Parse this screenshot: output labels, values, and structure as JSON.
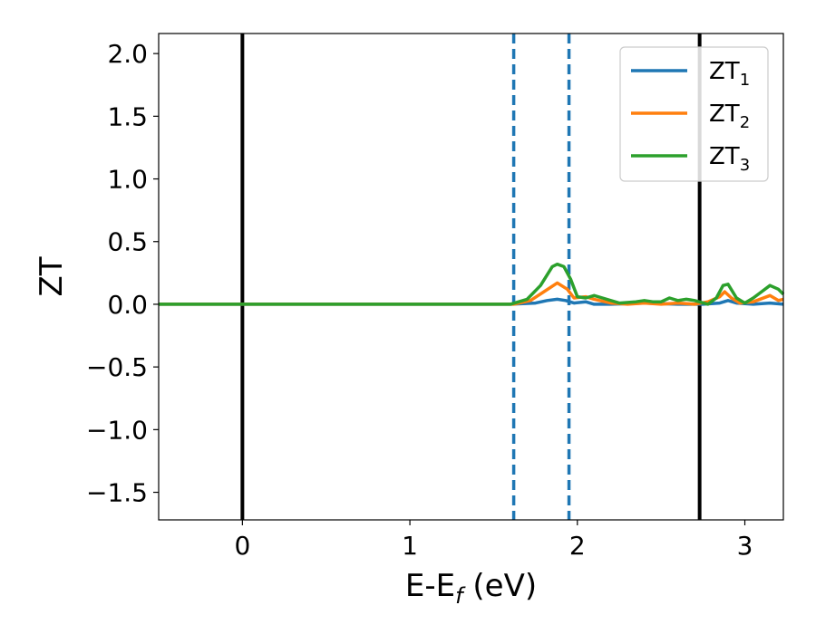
{
  "chart_data": {
    "type": "line",
    "title": "",
    "xlabel": {
      "main": "E-E",
      "sub": "f",
      "unit": " (eV)"
    },
    "ylabel": "ZT",
    "xlim": [
      -0.5,
      3.23
    ],
    "ylim": [
      -1.72,
      2.16
    ],
    "xticks": [
      0,
      1,
      2,
      3
    ],
    "xtick_labels": [
      "0",
      "1",
      "2",
      "3"
    ],
    "yticks": [
      -1.5,
      -1.0,
      -0.5,
      0.0,
      0.5,
      1.0,
      1.5,
      2.0
    ],
    "ytick_labels": [
      "−1.5",
      "−1.0",
      "−0.5",
      "0.0",
      "0.5",
      "1.0",
      "1.5",
      "2.0"
    ],
    "grid": false,
    "legend_position": "top-right",
    "vlines": [
      {
        "x": 0.0,
        "style": "solid",
        "color": "#000000"
      },
      {
        "x": 2.73,
        "style": "solid",
        "color": "#000000"
      },
      {
        "x": 1.62,
        "style": "dashed",
        "color": "#1f77b4"
      },
      {
        "x": 1.95,
        "style": "dashed",
        "color": "#1f77b4"
      }
    ],
    "series": [
      {
        "name": "ZT",
        "sub": "1",
        "color": "#1f77b4",
        "x": [
          -0.5,
          1.6,
          1.75,
          1.82,
          1.88,
          1.93,
          1.98,
          2.05,
          2.1,
          2.2,
          2.4,
          2.6,
          2.75,
          2.85,
          2.9,
          2.95,
          3.05,
          3.15,
          3.23
        ],
        "y": [
          0,
          0,
          0.01,
          0.03,
          0.04,
          0.03,
          0.01,
          0.02,
          0.0,
          0.0,
          0.01,
          0.0,
          0.0,
          0.01,
          0.03,
          0.01,
          0.0,
          0.01,
          0.0
        ]
      },
      {
        "name": "ZT",
        "sub": "2",
        "color": "#ff7f0e",
        "x": [
          -0.5,
          1.62,
          1.72,
          1.8,
          1.88,
          1.94,
          1.98,
          2.05,
          2.1,
          2.2,
          2.3,
          2.4,
          2.5,
          2.6,
          2.7,
          2.78,
          2.85,
          2.88,
          2.92,
          2.97,
          3.05,
          3.15,
          3.2,
          3.23
        ],
        "y": [
          0,
          0,
          0.03,
          0.1,
          0.17,
          0.12,
          0.05,
          0.06,
          0.04,
          0.01,
          0.0,
          0.01,
          0.0,
          0.01,
          0.0,
          0.02,
          0.06,
          0.1,
          0.05,
          0.01,
          0.02,
          0.07,
          0.03,
          0.04
        ]
      },
      {
        "name": "ZT",
        "sub": "3",
        "color": "#2ca02c",
        "x": [
          -0.5,
          1.6,
          1.7,
          1.78,
          1.85,
          1.88,
          1.92,
          1.96,
          2.0,
          2.05,
          2.1,
          2.15,
          2.25,
          2.35,
          2.4,
          2.45,
          2.5,
          2.55,
          2.6,
          2.65,
          2.7,
          2.78,
          2.83,
          2.87,
          2.9,
          2.95,
          3.0,
          3.05,
          3.1,
          3.15,
          3.2,
          3.23
        ],
        "y": [
          0,
          0,
          0.04,
          0.15,
          0.3,
          0.32,
          0.3,
          0.2,
          0.06,
          0.05,
          0.07,
          0.05,
          0.01,
          0.02,
          0.03,
          0.02,
          0.02,
          0.05,
          0.03,
          0.04,
          0.03,
          0.0,
          0.05,
          0.15,
          0.16,
          0.05,
          0.01,
          0.05,
          0.1,
          0.15,
          0.12,
          0.08
        ]
      }
    ]
  }
}
